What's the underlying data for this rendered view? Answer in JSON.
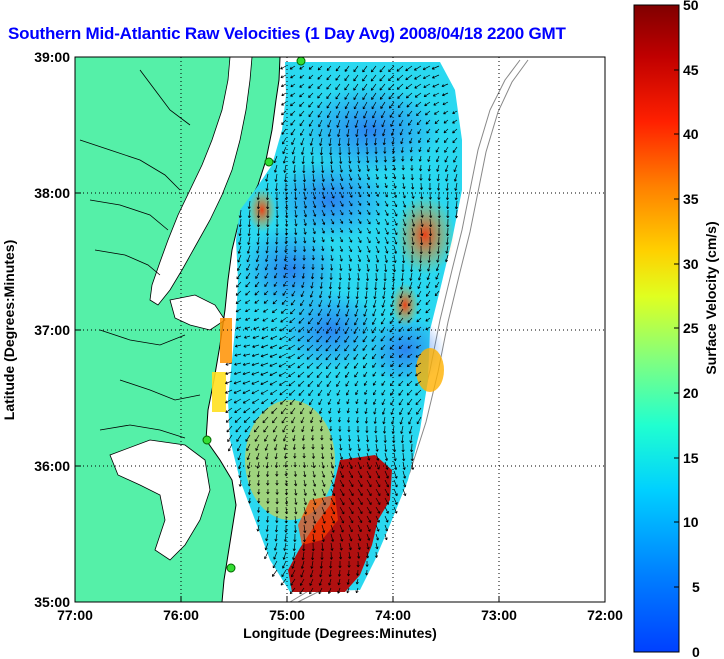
{
  "title": "Southern Mid-Atlantic Raw Velocities (1 Day Avg) 2008/04/18 2200 GMT",
  "map": {
    "xlabel": "Longitude (Degrees:Minutes)",
    "ylabel": "Latitude (Degrees:Minutes)",
    "lon_ticks": [
      "77:00",
      "76:00",
      "75:00",
      "74:00",
      "73:00",
      "72:00"
    ],
    "lat_ticks": [
      "39:00",
      "38:00",
      "37:00",
      "36:00",
      "35:00"
    ],
    "lon_range": [
      -77,
      -72
    ],
    "lat_range": [
      35,
      39
    ],
    "grid": true,
    "land_color": "#55f0a8",
    "ocean_color": "#ffffff",
    "station_color": "#33dd33"
  },
  "colorbar": {
    "label": "Surface Velocity (cm/s)",
    "ticks": [
      "50",
      "45",
      "40",
      "35",
      "30",
      "25",
      "20",
      "15",
      "10",
      "5",
      "0"
    ],
    "range": [
      0,
      50
    ],
    "colormap": "jet"
  }
}
